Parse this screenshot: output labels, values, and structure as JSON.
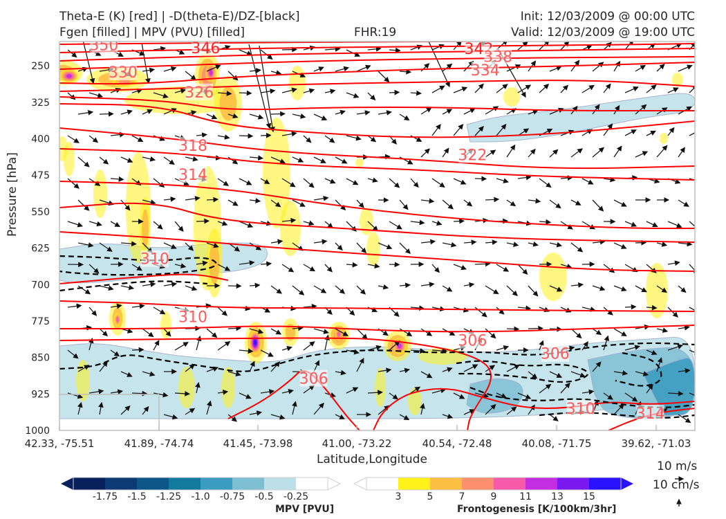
{
  "header": {
    "title_left_1": "Theta-E (K) [red] | -D(theta-E)/DZ-[black]",
    "title_left_2": "Fgen [filled] | MPV (PVU) [filled]",
    "title_center": "FHR:19",
    "title_right_1": "Init: 12/03/2009 @ 00:00 UTC",
    "title_right_2": "Valid: 12/03/2009 @ 19:00 UTC"
  },
  "chart_data": {
    "type": "cross-section",
    "xlabel": "Latitude,Longitude",
    "ylabel": "Pressure [hPa]",
    "x_ticks": [
      "42.33, -75.51",
      "41.89, -74.74",
      "41.45, -73.98",
      "41.00, -73.22",
      "40.54, -72.48",
      "40.08, -71.75",
      "39.62, -71.03"
    ],
    "y_ticks": [
      250,
      325,
      400,
      475,
      550,
      625,
      700,
      775,
      850,
      925,
      1000
    ],
    "ylim": [
      1000,
      200
    ],
    "grid": false,
    "theta_e_labels": [
      {
        "value": "350",
        "x_frac": 0.07,
        "p": 208
      },
      {
        "value": "346",
        "x_frac": 0.23,
        "p": 214
      },
      {
        "value": "342",
        "x_frac": 0.66,
        "p": 216
      },
      {
        "value": "338",
        "x_frac": 0.69,
        "p": 232
      },
      {
        "value": "334",
        "x_frac": 0.67,
        "p": 260
      },
      {
        "value": "330",
        "x_frac": 0.1,
        "p": 264
      },
      {
        "value": "326",
        "x_frac": 0.22,
        "p": 305
      },
      {
        "value": "322",
        "x_frac": 0.65,
        "p": 434
      },
      {
        "value": "318",
        "x_frac": 0.21,
        "p": 415
      },
      {
        "value": "314",
        "x_frac": 0.21,
        "p": 475
      },
      {
        "value": "310",
        "x_frac": 0.15,
        "p": 648
      },
      {
        "value": "310",
        "x_frac": 0.21,
        "p": 767
      },
      {
        "value": "306",
        "x_frac": 0.65,
        "p": 816
      },
      {
        "value": "306",
        "x_frac": 0.78,
        "p": 843
      },
      {
        "value": "306",
        "x_frac": 0.4,
        "p": 894
      },
      {
        "value": "310",
        "x_frac": 0.82,
        "p": 956
      },
      {
        "value": "314",
        "x_frac": 0.93,
        "p": 966
      }
    ],
    "mpv_colorbar": {
      "label": "MPV [PVU]",
      "ticks": [
        "-1.75",
        "-1.5",
        "-1.25",
        "-1.0",
        "-0.75",
        "-0.5",
        "-0.25"
      ],
      "colors": [
        "#08215c",
        "#0b3a74",
        "#0c5788",
        "#127a9d",
        "#3a9cc0",
        "#7fbfd4",
        "#bde0e8",
        "#ffffff"
      ]
    },
    "fgen_colorbar": {
      "label": "Frontogenesis [K/100km/3hr]",
      "ticks": [
        "3",
        "5",
        "7",
        "9",
        "11",
        "13",
        "15"
      ],
      "colors": [
        "#ffffff",
        "#fff11a",
        "#fdbe44",
        "#fb8f6e",
        "#f75aa8",
        "#c22ee0",
        "#7a18f0",
        "#2a12ff"
      ]
    },
    "vector_reference": {
      "horizontal": "10 m/s",
      "vertical": "10 cm/s"
    }
  },
  "colors": {
    "theta_e": "#ff0000",
    "theta_e_label": "#ff5a5a",
    "stability": "#000000",
    "mpv_contour": "#9aa8cc",
    "axis_frame": "#bfbfbf"
  }
}
